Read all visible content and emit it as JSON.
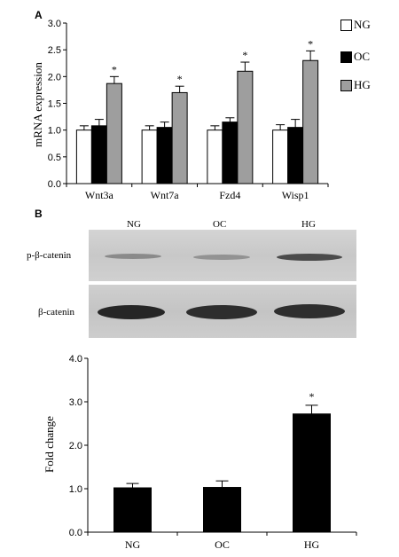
{
  "panel_a_letter": "A",
  "panel_b_letter": "B",
  "chart_data": [
    {
      "type": "bar",
      "categories": [
        "Wnt3a",
        "Wnt7a",
        "Fzd4",
        "Wisp1"
      ],
      "series": [
        {
          "name": "NG",
          "values": [
            1.0,
            1.0,
            1.0,
            1.0
          ],
          "errors": [
            0.08,
            0.08,
            0.08,
            0.1
          ],
          "color": "#ffffff"
        },
        {
          "name": "OC",
          "values": [
            1.08,
            1.05,
            1.15,
            1.05
          ],
          "errors": [
            0.12,
            0.1,
            0.08,
            0.15
          ],
          "color": "#000000"
        },
        {
          "name": "HG",
          "values": [
            1.87,
            1.7,
            2.1,
            2.3
          ],
          "errors": [
            0.13,
            0.12,
            0.17,
            0.18
          ],
          "color": "#9e9e9e"
        }
      ],
      "significance": [
        true,
        true,
        true,
        true
      ],
      "significance_mark": "*",
      "ylabel": "mRNA expression",
      "ylim": [
        0.0,
        3.0
      ],
      "yticks": [
        "0.0",
        "0.5",
        "1.0",
        "1.5",
        "2.0",
        "2.5",
        "3.0"
      ],
      "legend_position": "right"
    },
    {
      "type": "bar",
      "categories": [
        "NG",
        "OC",
        "HG"
      ],
      "values": [
        1.02,
        1.03,
        2.72
      ],
      "errors": [
        0.1,
        0.15,
        0.2
      ],
      "color": "#000000",
      "significance": [
        false,
        false,
        true
      ],
      "significance_mark": "*",
      "ylabel": "Fold change",
      "ylim": [
        0.0,
        4.0
      ],
      "yticks": [
        "0.0",
        "1.0",
        "2.0",
        "3.0",
        "4.0"
      ]
    }
  ],
  "blot": {
    "lanes": [
      "NG",
      "OC",
      "HG"
    ],
    "rows": [
      "p-β-catenin",
      "β-catenin"
    ]
  }
}
